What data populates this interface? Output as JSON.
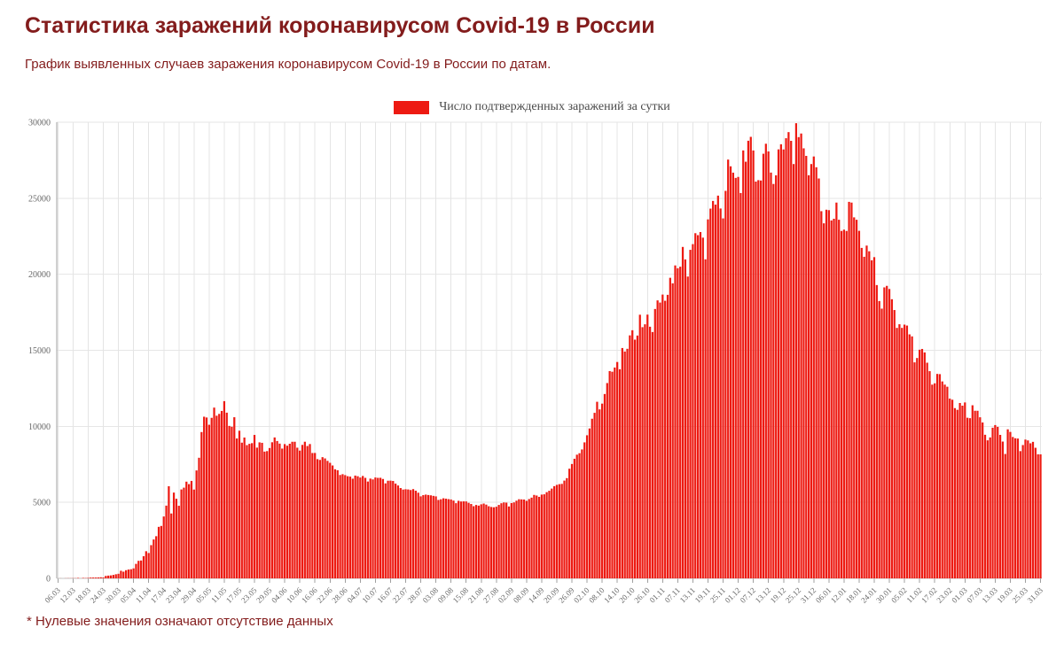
{
  "page": {
    "title": "Статистика заражений коронавирусом Covid-19 в России",
    "subtitle": "График выявленных случаев заражения коронавирусом Covid-19 в России по датам.",
    "footnote": "* Нулевые значения означают отсутствие данных",
    "colors": {
      "heading": "#831c1c",
      "bar": "#ed1a12",
      "grid": "#e6e6e6",
      "axis": "#a0a0a0",
      "tick_label": "#666666"
    }
  },
  "chart_data": {
    "type": "bar",
    "title": "",
    "legend": {
      "label": "Число подтвержденных заражений за сутки",
      "color": "#ed1a12",
      "position": "top-center"
    },
    "ylabel": "",
    "xlabel": "",
    "ylim": [
      0,
      30000
    ],
    "grid": true,
    "ytick_labels": [
      "0",
      "5000",
      "10000",
      "15000",
      "20000",
      "25000",
      "30000"
    ],
    "xtick_step_days": 6,
    "xtick_labels": [
      "06.03",
      "12.03",
      "18.03",
      "24.03",
      "30.03",
      "05.04",
      "11.04",
      "17.04",
      "23.04",
      "29.04",
      "05.05",
      "11.05",
      "17.05",
      "23.05",
      "29.05",
      "04.06",
      "10.06",
      "16.06",
      "22.06",
      "28.06",
      "04.07",
      "10.07",
      "16.07",
      "22.07",
      "28.07",
      "03.08",
      "09.08",
      "15.08",
      "21.08",
      "27.08",
      "02.09",
      "08.09",
      "14.09",
      "20.09",
      "26.09",
      "02.10",
      "08.10",
      "14.10",
      "20.10",
      "26.10",
      "01.11",
      "07.11",
      "13.11",
      "19.11",
      "25.11",
      "01.12",
      "07.12",
      "13.12",
      "19.12",
      "25.12",
      "31.12",
      "06.01",
      "12.01",
      "18.01",
      "24.01",
      "30.01",
      "05.02",
      "11.02",
      "17.02",
      "23.02",
      "01.03",
      "07.03",
      "13.03",
      "19.03",
      "25.03",
      "31.03"
    ],
    "series_name": "Число подтвержденных заражений за сутки",
    "values": [
      1,
      4,
      0,
      6,
      10,
      8,
      14,
      11,
      29,
      4,
      30,
      21,
      33,
      52,
      54,
      53,
      61,
      71,
      57,
      163,
      182,
      196,
      228,
      270,
      302,
      501,
      440,
      537,
      582,
      601,
      658,
      954,
      1154,
      1175,
      1459,
      1786,
      1667,
      2186,
      2558,
      2774,
      3388,
      3448,
      4070,
      4785,
      6060,
      4268,
      5642,
      5236,
      4774,
      5849,
      5966,
      6361,
      6198,
      6411,
      5841,
      7099,
      7933,
      9623,
      10633,
      10581,
      10102,
      10559,
      11231,
      10699,
      10817,
      11012,
      11656,
      10899,
      10028,
      9974,
      10598,
      9200,
      9709,
      8926,
      9263,
      8764,
      8849,
      8894,
      9434,
      8599,
      8946,
      8915,
      8338,
      8371,
      8572,
      8952,
      9268,
      9035,
      8863,
      8536,
      8831,
      8726,
      8855,
      8984,
      8985,
      8595,
      8404,
      8779,
      8987,
      8706,
      8835,
      8246,
      8248,
      7843,
      7790,
      7972,
      7889,
      7728,
      7600,
      7425,
      7176,
      7113,
      6800,
      6852,
      6791,
      6719,
      6693,
      6556,
      6760,
      6718,
      6632,
      6736,
      6611,
      6368,
      6562,
      6509,
      6635,
      6611,
      6615,
      6537,
      6248,
      6422,
      6428,
      6406,
      6234,
      6109,
      5940,
      5842,
      5862,
      5848,
      5811,
      5871,
      5765,
      5635,
      5395,
      5475,
      5509,
      5482,
      5462,
      5427,
      5394,
      5159,
      5204,
      5267,
      5241,
      5212,
      5189,
      5118,
      4945,
      5102,
      5057,
      5065,
      5061,
      4969,
      4892,
      4748,
      4828,
      4785,
      4870,
      4921,
      4852,
      4744,
      4696,
      4676,
      4711,
      4829,
      4941,
      4993,
      4980,
      4729,
      4952,
      4995,
      5110,
      5205,
      5195,
      5185,
      5099,
      5218,
      5310,
      5488,
      5449,
      5361,
      5509,
      5529,
      5670,
      5762,
      5905,
      6065,
      6148,
      6196,
      6215,
      6431,
      6595,
      7212,
      7523,
      7867,
      8135,
      8232,
      8481,
      8945,
      9412,
      9859,
      10499,
      10888,
      11615,
      11115,
      11493,
      12126,
      12846,
      13634,
      13592,
      13868,
      14231,
      13754,
      15150,
      14922,
      15099,
      15982,
      16319,
      15700,
      15971,
      17340,
      16521,
      16710,
      17347,
      16550,
      16202,
      17717,
      18283,
      18140,
      18665,
      18257,
      18648,
      19768,
      19404,
      20582,
      20396,
      20498,
      21798,
      20977,
      19851,
      21608,
      21983,
      22702,
      22572,
      22778,
      22410,
      20985,
      23610,
      24318,
      24822,
      24581,
      25173,
      24326,
      23675,
      25487,
      27543,
      27100,
      26683,
      26338,
      26402,
      25345,
      28145,
      27403,
      28782,
      29039,
      28142,
      26097,
      26190,
      26167,
      27927,
      28585,
      28080,
      26689,
      25940,
      26509,
      28214,
      28552,
      28209,
      28948,
      29350,
      28776,
      27250,
      29935,
      29018,
      29258,
      28284,
      27787,
      26513,
      27250,
      27747,
      27039,
      26301,
      24150,
      23351,
      24246,
      24217,
      23541,
      23652,
      24715,
      23586,
      22851,
      22934,
      22850,
      24763,
      24715,
      23743,
      23586,
      22857,
      21734,
      21152,
      21887,
      21513,
      20921,
      21127,
      19290,
      18241,
      17741,
      19138,
      19238,
      19032,
      18359,
      17648,
      16474,
      16714,
      16474,
      16688,
      16627,
      16048,
      15916,
      14207,
      14494,
      15038,
      15089,
      14861,
      14185,
      13628,
      12742,
      12828,
      13447,
      13433,
      12953,
      12742,
      12604,
      11823,
      11749,
      11198,
      11086,
      11534,
      11359,
      11571,
      10565,
      10535,
      11385,
      11024,
      11022,
      10595,
      10253,
      9445,
      9079,
      9270,
      9908,
      10083,
      9964,
      9437,
      8998,
      8183,
      9803,
      9632,
      9299,
      9215,
      9195,
      8369,
      8769,
      9128,
      9073,
      8885,
      8979,
      8589,
      8162,
      8156
    ]
  }
}
